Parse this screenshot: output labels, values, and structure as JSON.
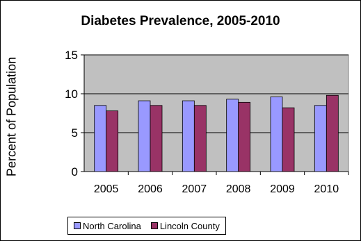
{
  "chart_data": {
    "type": "bar",
    "title": "Diabetes Prevalence, 2005-2010",
    "xlabel": "",
    "ylabel": "Percent of Population",
    "categories": [
      "2005",
      "2006",
      "2007",
      "2008",
      "2009",
      "2010"
    ],
    "ylim": [
      0,
      15
    ],
    "yticks": [
      0,
      5,
      10,
      15
    ],
    "grid": true,
    "plot_background": "#c0c0c0",
    "legend_position": "bottom",
    "series": [
      {
        "name": "North Carolina",
        "color": "#9999ff",
        "values": [
          8.5,
          9.1,
          9.1,
          9.3,
          9.6,
          8.5
        ]
      },
      {
        "name": "Lincoln County",
        "color": "#993366",
        "values": [
          7.8,
          8.5,
          8.5,
          8.9,
          8.2,
          9.8
        ]
      }
    ]
  }
}
